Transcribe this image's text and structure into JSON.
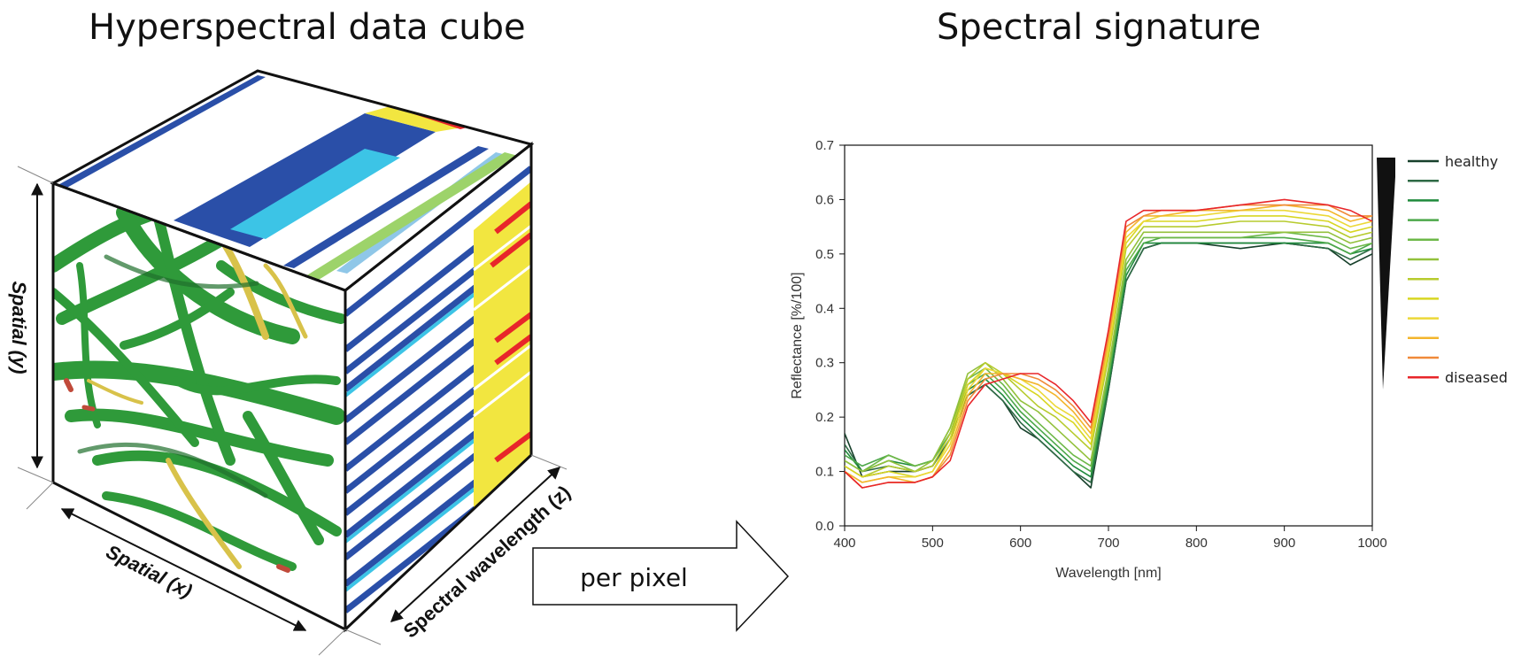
{
  "left_panel": {
    "title": "Hyperspectral data cube",
    "axis_y_label": "Spatial (y)",
    "axis_x_label": "Spatial (x)",
    "axis_z_label": "Spectral wavelength (z)"
  },
  "arrow": {
    "label": "per pixel"
  },
  "right_panel": {
    "title": "Spectral signature"
  },
  "colors": {
    "leaf_green": "#2f9a3a",
    "leaf_yellow": "#d8c24a",
    "band_blue": "#2a4fa8",
    "band_cyan": "#3cc4e6",
    "band_yellow": "#f2e640",
    "band_red": "#e8262a"
  },
  "chart_data": {
    "type": "line",
    "xlabel": "Wavelength [nm]",
    "ylabel": "Reflectance [%/100]",
    "xlim": [
      400,
      1000
    ],
    "ylim": [
      0,
      0.7
    ],
    "xticks": [
      400,
      500,
      600,
      700,
      800,
      900,
      1000
    ],
    "yticks": [
      0.0,
      0.1,
      0.2,
      0.3,
      0.4,
      0.5,
      0.6,
      0.7
    ],
    "grid": false,
    "legend_placement": "right",
    "legend_labels": [
      "healthy",
      "",
      "",
      "",
      "",
      "",
      "",
      "",
      "",
      "",
      "",
      "diseased"
    ],
    "x": [
      400,
      420,
      450,
      480,
      500,
      520,
      540,
      560,
      580,
      600,
      620,
      640,
      660,
      680,
      700,
      720,
      740,
      760,
      800,
      850,
      900,
      950,
      975,
      1000
    ],
    "series": [
      {
        "color": "#17402b",
        "values": [
          0.17,
          0.09,
          0.1,
          0.1,
          0.11,
          0.16,
          0.24,
          0.26,
          0.23,
          0.18,
          0.16,
          0.13,
          0.1,
          0.07,
          0.25,
          0.45,
          0.51,
          0.52,
          0.52,
          0.51,
          0.52,
          0.51,
          0.48,
          0.5
        ]
      },
      {
        "color": "#2e6a45",
        "values": [
          0.15,
          0.1,
          0.11,
          0.1,
          0.11,
          0.16,
          0.24,
          0.26,
          0.23,
          0.19,
          0.16,
          0.13,
          0.1,
          0.08,
          0.25,
          0.45,
          0.51,
          0.52,
          0.52,
          0.52,
          0.52,
          0.51,
          0.49,
          0.51
        ]
      },
      {
        "color": "#1f8a3c",
        "values": [
          0.14,
          0.1,
          0.12,
          0.11,
          0.12,
          0.17,
          0.25,
          0.27,
          0.24,
          0.2,
          0.17,
          0.14,
          0.11,
          0.09,
          0.26,
          0.46,
          0.52,
          0.52,
          0.52,
          0.52,
          0.52,
          0.52,
          0.5,
          0.51
        ]
      },
      {
        "color": "#4da84a",
        "values": [
          0.13,
          0.11,
          0.13,
          0.11,
          0.12,
          0.17,
          0.26,
          0.28,
          0.25,
          0.21,
          0.18,
          0.15,
          0.12,
          0.1,
          0.27,
          0.47,
          0.52,
          0.53,
          0.53,
          0.53,
          0.53,
          0.52,
          0.5,
          0.52
        ]
      },
      {
        "color": "#6db848",
        "values": [
          0.12,
          0.1,
          0.13,
          0.11,
          0.12,
          0.18,
          0.27,
          0.29,
          0.26,
          0.22,
          0.19,
          0.16,
          0.13,
          0.11,
          0.28,
          0.48,
          0.53,
          0.53,
          0.53,
          0.53,
          0.54,
          0.53,
          0.51,
          0.52
        ]
      },
      {
        "color": "#93c13c",
        "values": [
          0.12,
          0.1,
          0.12,
          0.1,
          0.12,
          0.18,
          0.28,
          0.3,
          0.27,
          0.23,
          0.21,
          0.18,
          0.15,
          0.12,
          0.29,
          0.49,
          0.54,
          0.54,
          0.54,
          0.54,
          0.54,
          0.54,
          0.52,
          0.53
        ]
      },
      {
        "color": "#b7cb2e",
        "values": [
          0.11,
          0.09,
          0.11,
          0.1,
          0.11,
          0.17,
          0.27,
          0.3,
          0.28,
          0.25,
          0.22,
          0.2,
          0.17,
          0.14,
          0.31,
          0.51,
          0.55,
          0.55,
          0.55,
          0.56,
          0.56,
          0.55,
          0.53,
          0.54
        ]
      },
      {
        "color": "#d8d622",
        "values": [
          0.11,
          0.09,
          0.1,
          0.09,
          0.1,
          0.16,
          0.26,
          0.29,
          0.28,
          0.26,
          0.24,
          0.21,
          0.19,
          0.15,
          0.32,
          0.52,
          0.56,
          0.56,
          0.56,
          0.57,
          0.57,
          0.56,
          0.54,
          0.55
        ]
      },
      {
        "color": "#ecd838",
        "values": [
          0.1,
          0.08,
          0.09,
          0.09,
          0.1,
          0.15,
          0.25,
          0.29,
          0.28,
          0.27,
          0.25,
          0.22,
          0.2,
          0.16,
          0.33,
          0.53,
          0.56,
          0.57,
          0.57,
          0.58,
          0.58,
          0.57,
          0.55,
          0.56
        ]
      },
      {
        "color": "#f3b52c",
        "values": [
          0.1,
          0.08,
          0.09,
          0.08,
          0.09,
          0.14,
          0.24,
          0.28,
          0.28,
          0.27,
          0.26,
          0.24,
          0.21,
          0.17,
          0.34,
          0.54,
          0.57,
          0.57,
          0.58,
          0.58,
          0.59,
          0.58,
          0.56,
          0.57
        ]
      },
      {
        "color": "#f08a3a",
        "values": [
          0.1,
          0.07,
          0.08,
          0.08,
          0.09,
          0.13,
          0.23,
          0.27,
          0.28,
          0.28,
          0.27,
          0.25,
          0.22,
          0.18,
          0.35,
          0.55,
          0.57,
          0.58,
          0.58,
          0.59,
          0.59,
          0.59,
          0.57,
          0.57
        ]
      },
      {
        "color": "#e8262a",
        "values": [
          0.1,
          0.07,
          0.08,
          0.08,
          0.09,
          0.12,
          0.22,
          0.26,
          0.27,
          0.28,
          0.28,
          0.26,
          0.23,
          0.19,
          0.36,
          0.56,
          0.58,
          0.58,
          0.58,
          0.59,
          0.6,
          0.59,
          0.58,
          0.56
        ]
      }
    ]
  }
}
